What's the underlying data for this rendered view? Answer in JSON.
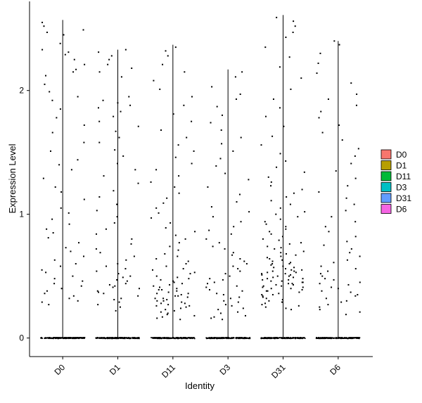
{
  "chart_data": {
    "type": "violin",
    "title": "",
    "xlabel": "Identity",
    "ylabel": "Expression Level",
    "categories": [
      "D0",
      "D1",
      "D11",
      "D3",
      "D31",
      "D6"
    ],
    "category_colors": [
      "#F8766D",
      "#B79F00",
      "#00BA38",
      "#00BFC4",
      "#619CFF",
      "#F564E3"
    ],
    "y_ticks": [
      0,
      1,
      2
    ],
    "ylim": [
      -0.15,
      2.72
    ],
    "grid": false,
    "legend_position": "right",
    "series": [
      {
        "name": "D0",
        "violin_max": 2.57,
        "zero_count": 230,
        "points": [
          2.55,
          2.52,
          2.49,
          2.47,
          2.45,
          2.38,
          2.33,
          2.31,
          2.29,
          2.25,
          2.21,
          2.17,
          2.15,
          2.12,
          2.05,
          1.99,
          1.95,
          1.92,
          1.85,
          1.78,
          1.72,
          1.66,
          1.58,
          1.51,
          1.44,
          1.4,
          1.36,
          1.29,
          1.22,
          1.18,
          1.12,
          1.05,
          1.01,
          0.96,
          0.92,
          0.88,
          0.85,
          0.81,
          0.77,
          0.73,
          0.7,
          0.66,
          0.63,
          0.6,
          0.58,
          0.55,
          0.53,
          0.5,
          0.48,
          0.46,
          0.44,
          0.42,
          0.4,
          0.38,
          0.36,
          0.34,
          0.32,
          0.3,
          0.29,
          0.27
        ]
      },
      {
        "name": "D1",
        "violin_max": 2.33,
        "zero_count": 230,
        "points": [
          2.33,
          2.31,
          2.28,
          2.25,
          2.21,
          2.18,
          2.15,
          2.11,
          1.95,
          1.92,
          1.9,
          1.88,
          1.86,
          1.83,
          1.79,
          1.75,
          1.71,
          1.67,
          1.62,
          1.58,
          1.52,
          1.47,
          1.41,
          1.36,
          1.31,
          1.25,
          1.19,
          1.14,
          1.08,
          1.03,
          0.98,
          0.93,
          0.88,
          0.84,
          0.8,
          0.76,
          0.72,
          0.69,
          0.66,
          0.63,
          0.6,
          0.58,
          0.56,
          0.54,
          0.52,
          0.5,
          0.49,
          0.47,
          0.46,
          0.44,
          0.43,
          0.42,
          0.41,
          0.4,
          0.38,
          0.37,
          0.36,
          0.34,
          0.32,
          0.31,
          0.29,
          0.27,
          0.25,
          0.22
        ]
      },
      {
        "name": "D11",
        "violin_max": 2.37,
        "zero_count": 230,
        "points": [
          2.35,
          2.32,
          2.28,
          2.21,
          2.15,
          2.08,
          2.01,
          1.95,
          1.88,
          1.81,
          1.75,
          1.68,
          1.62,
          1.56,
          1.51,
          1.46,
          1.41,
          1.36,
          1.31,
          1.26,
          1.22,
          1.17,
          1.13,
          1.09,
          1.05,
          1.01,
          0.97,
          0.93,
          0.89,
          0.86,
          0.83,
          0.8,
          0.77,
          0.74,
          0.71,
          0.68,
          0.66,
          0.64,
          0.62,
          0.6,
          0.58,
          0.56,
          0.55,
          0.53,
          0.52,
          0.5,
          0.49,
          0.48,
          0.47,
          0.46,
          0.45,
          0.44,
          0.43,
          0.42,
          0.41,
          0.4,
          0.39,
          0.39,
          0.38,
          0.37,
          0.36,
          0.36,
          0.35,
          0.34,
          0.34,
          0.33,
          0.32,
          0.32,
          0.31,
          0.3,
          0.3,
          0.29,
          0.28,
          0.28,
          0.27,
          0.26,
          0.26,
          0.25,
          0.24,
          0.23,
          0.22,
          0.21,
          0.2,
          0.19,
          0.18,
          0.17,
          0.16,
          0.15
        ]
      },
      {
        "name": "D3",
        "violin_max": 2.17,
        "zero_count": 230,
        "points": [
          2.15,
          2.11,
          2.03,
          1.97,
          1.93,
          1.87,
          1.8,
          1.74,
          1.68,
          1.62,
          1.57,
          1.51,
          1.45,
          1.39,
          1.33,
          1.28,
          1.22,
          1.16,
          1.1,
          1.06,
          1.02,
          0.98,
          0.94,
          0.9,
          0.87,
          0.84,
          0.8,
          0.77,
          0.74,
          0.72,
          0.69,
          0.67,
          0.64,
          0.62,
          0.6,
          0.58,
          0.56,
          0.54,
          0.52,
          0.5,
          0.48,
          0.47,
          0.45,
          0.44,
          0.42,
          0.41,
          0.39,
          0.38,
          0.36,
          0.35,
          0.33,
          0.32,
          0.3,
          0.29,
          0.27,
          0.26,
          0.24,
          0.23,
          0.21,
          0.2,
          0.18,
          0.17,
          0.16,
          0.15
        ]
      },
      {
        "name": "D31",
        "violin_max": 2.61,
        "zero_count": 230,
        "points": [
          2.59,
          2.56,
          2.52,
          2.47,
          2.43,
          2.35,
          2.27,
          2.19,
          2.1,
          2.01,
          1.93,
          1.86,
          1.79,
          1.71,
          1.63,
          1.56,
          1.49,
          1.43,
          1.38,
          1.34,
          1.3,
          1.26,
          1.23,
          1.2,
          1.17,
          1.14,
          1.11,
          1.08,
          1.05,
          1.02,
          1.0,
          0.98,
          0.96,
          0.94,
          0.92,
          0.9,
          0.88,
          0.86,
          0.84,
          0.82,
          0.8,
          0.79,
          0.77,
          0.76,
          0.74,
          0.73,
          0.72,
          0.7,
          0.69,
          0.68,
          0.67,
          0.66,
          0.65,
          0.64,
          0.63,
          0.62,
          0.61,
          0.6,
          0.6,
          0.59,
          0.58,
          0.57,
          0.57,
          0.56,
          0.55,
          0.55,
          0.54,
          0.54,
          0.53,
          0.53,
          0.52,
          0.52,
          0.51,
          0.51,
          0.5,
          0.5,
          0.49,
          0.49,
          0.48,
          0.48,
          0.47,
          0.47,
          0.46,
          0.46,
          0.45,
          0.45,
          0.44,
          0.44,
          0.43,
          0.43,
          0.42,
          0.42,
          0.41,
          0.41,
          0.4,
          0.4,
          0.39,
          0.38,
          0.38,
          0.37,
          0.36,
          0.35,
          0.35,
          0.34,
          0.33,
          0.32,
          0.31,
          0.3,
          0.29,
          0.28,
          0.27,
          0.26,
          0.25,
          0.24,
          0.23
        ]
      },
      {
        "name": "D6",
        "violin_max": 2.4,
        "zero_count": 230,
        "points": [
          2.4,
          2.37,
          2.3,
          2.22,
          2.14,
          2.06,
          1.97,
          1.93,
          1.88,
          1.83,
          1.78,
          1.72,
          1.66,
          1.6,
          1.53,
          1.47,
          1.41,
          1.35,
          1.29,
          1.23,
          1.18,
          1.13,
          1.08,
          1.03,
          0.98,
          0.94,
          0.9,
          0.86,
          0.82,
          0.78,
          0.75,
          0.72,
          0.69,
          0.66,
          0.63,
          0.61,
          0.58,
          0.56,
          0.54,
          0.52,
          0.5,
          0.48,
          0.47,
          0.45,
          0.44,
          0.43,
          0.41,
          0.4,
          0.38,
          0.37,
          0.35,
          0.34,
          0.32,
          0.3,
          0.29,
          0.27,
          0.25,
          0.23,
          0.21,
          0.19
        ]
      }
    ]
  }
}
